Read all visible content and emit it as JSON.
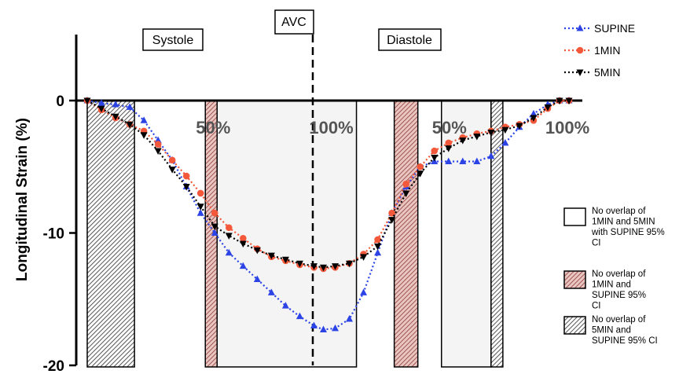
{
  "chart_data": {
    "type": "line",
    "ylabel": "Longitudinal Strain (%)",
    "ylim": [
      -20,
      5
    ],
    "yticks": [
      {
        "value": 0,
        "label": "0"
      },
      {
        "value": -10,
        "label": "-10"
      },
      {
        "value": -20,
        "label": "-20"
      }
    ],
    "x_annotations": [
      {
        "label": "50%",
        "x": 0.5
      },
      {
        "label": "100%",
        "x": 1.0
      },
      {
        "label": "50%",
        "x": 1.5
      },
      {
        "label": "100%",
        "x": 2.0
      }
    ],
    "phase_labels": [
      "Systole",
      "AVC",
      "Diastole"
    ],
    "series": [
      {
        "name": "SUPINE",
        "color": "#2c44e6",
        "marker": "triangle-up",
        "x": [
          0.0,
          0.06,
          0.12,
          0.18,
          0.24,
          0.3,
          0.36,
          0.42,
          0.48,
          0.54,
          0.6,
          0.66,
          0.72,
          0.78,
          0.84,
          0.9,
          0.96,
          1.0,
          1.05,
          1.11,
          1.17,
          1.23,
          1.29,
          1.35,
          1.41,
          1.47,
          1.53,
          1.59,
          1.65,
          1.71,
          1.77,
          1.83,
          1.89,
          1.95,
          2.0,
          2.04
        ],
        "y": [
          0.0,
          -0.2,
          -0.3,
          -0.5,
          -1.5,
          -3.0,
          -4.5,
          -6.5,
          -8.5,
          -10.0,
          -11.5,
          -12.5,
          -13.5,
          -14.5,
          -15.5,
          -16.3,
          -17.0,
          -17.3,
          -17.2,
          -16.5,
          -14.5,
          -11.5,
          -8.5,
          -6.5,
          -5.0,
          -4.6,
          -4.6,
          -4.6,
          -4.6,
          -4.2,
          -3.2,
          -2.0,
          -1.0,
          -0.3,
          0.0,
          0.0
        ]
      },
      {
        "name": "1MIN",
        "color": "#f4583a",
        "marker": "circle",
        "x": [
          0.0,
          0.06,
          0.12,
          0.18,
          0.24,
          0.3,
          0.36,
          0.42,
          0.48,
          0.54,
          0.6,
          0.66,
          0.72,
          0.78,
          0.84,
          0.9,
          0.96,
          1.0,
          1.05,
          1.11,
          1.17,
          1.23,
          1.29,
          1.35,
          1.41,
          1.47,
          1.53,
          1.59,
          1.65,
          1.71,
          1.77,
          1.83,
          1.89,
          1.95,
          2.0,
          2.04
        ],
        "y": [
          0.0,
          -0.7,
          -1.3,
          -1.8,
          -2.3,
          -3.3,
          -4.5,
          -5.7,
          -7.0,
          -8.5,
          -9.6,
          -10.4,
          -11.2,
          -11.8,
          -12.1,
          -12.4,
          -12.6,
          -12.7,
          -12.6,
          -12.3,
          -11.6,
          -10.5,
          -8.5,
          -6.3,
          -5.0,
          -3.8,
          -3.2,
          -2.8,
          -2.5,
          -2.3,
          -2.0,
          -1.8,
          -1.5,
          -0.6,
          0.0,
          0.0
        ]
      },
      {
        "name": "5MIN",
        "color": "#000000",
        "marker": "triangle-down",
        "x": [
          0.0,
          0.06,
          0.12,
          0.18,
          0.24,
          0.3,
          0.36,
          0.42,
          0.48,
          0.54,
          0.6,
          0.66,
          0.72,
          0.78,
          0.84,
          0.9,
          0.96,
          1.0,
          1.05,
          1.11,
          1.17,
          1.23,
          1.29,
          1.35,
          1.41,
          1.47,
          1.53,
          1.59,
          1.65,
          1.71,
          1.77,
          1.83,
          1.89,
          1.95,
          2.0,
          2.04
        ],
        "y": [
          0.0,
          -0.6,
          -1.2,
          -1.8,
          -2.6,
          -3.8,
          -5.2,
          -6.5,
          -8.0,
          -9.5,
          -10.2,
          -10.8,
          -11.3,
          -11.7,
          -12.0,
          -12.3,
          -12.5,
          -12.6,
          -12.5,
          -12.3,
          -11.8,
          -11.0,
          -9.0,
          -7.0,
          -5.5,
          -4.3,
          -3.6,
          -3.0,
          -2.7,
          -2.4,
          -2.2,
          -1.9,
          -1.3,
          -0.5,
          0.0,
          0.0
        ]
      }
    ],
    "shaded_regions": [
      {
        "type": "black",
        "x0": 0.0,
        "x1": 0.2
      },
      {
        "type": "red",
        "x0": 0.5,
        "x1": 0.55
      },
      {
        "type": "white",
        "x0": 0.55,
        "x1": 1.14
      },
      {
        "type": "red",
        "x0": 1.3,
        "x1": 1.4
      },
      {
        "type": "white",
        "x0": 1.5,
        "x1": 1.71
      },
      {
        "type": "black",
        "x0": 1.71,
        "x1": 1.76
      }
    ],
    "legend_position": "top-right",
    "key": [
      {
        "type": "white",
        "text": [
          "No overlap of",
          "1MIN and 5MIN",
          "with SUPINE 95%",
          "CI"
        ]
      },
      {
        "type": "red",
        "text": [
          "No overlap of",
          "1MIN and",
          "SUPINE 95%",
          "CI"
        ]
      },
      {
        "type": "black",
        "text": [
          "No overlap of",
          "5MIN and",
          "SUPINE 95% CI"
        ]
      }
    ]
  }
}
